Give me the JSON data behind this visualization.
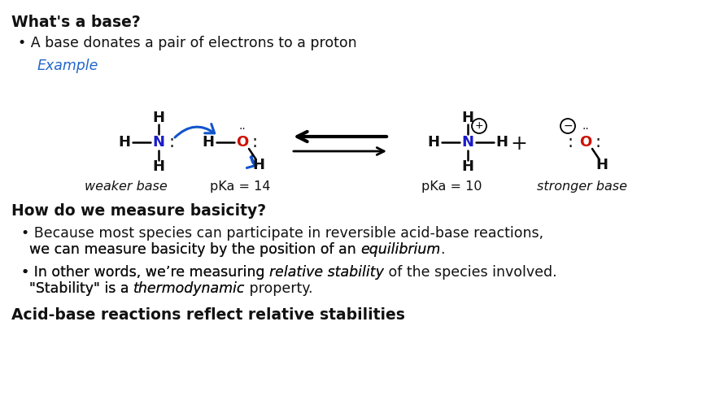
{
  "bg_color": "#ffffff",
  "heading1": "What's a base?",
  "bullet1": "• A base donates a pair of electrons to a proton",
  "example_label": "Example",
  "example_color": "#2266cc",
  "label_weaker": "weaker base",
  "label_pka14": "pKa = 14",
  "label_pka10": "pKa = 10",
  "label_stronger": "stronger base",
  "heading2": "How do we measure basicity?",
  "heading3": "Acid-base reactions reflect relative stabilities",
  "blue_arrow_color": "#1155cc",
  "N_color": "#1a1acc",
  "O_color": "#cc1100",
  "bond_color": "#111111",
  "text_color": "#111111"
}
